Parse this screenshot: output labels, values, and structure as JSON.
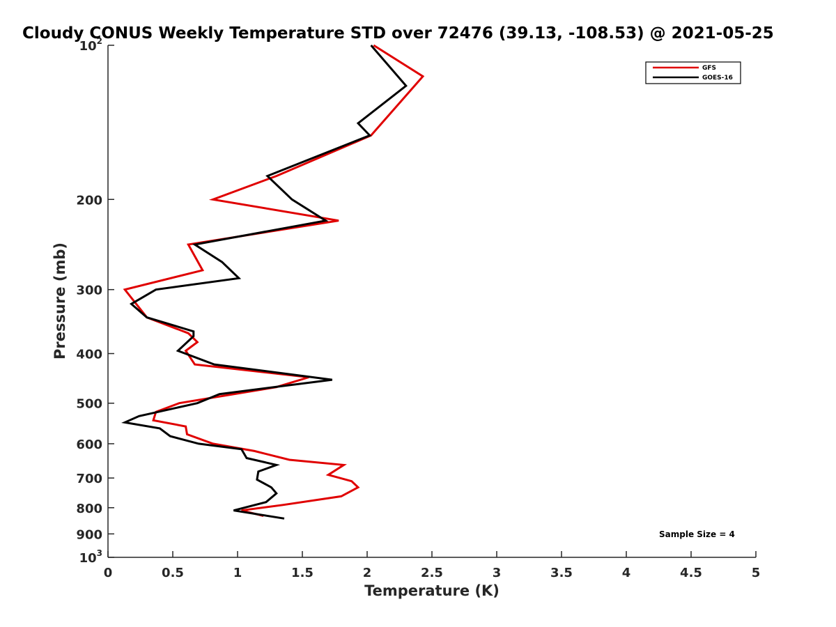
{
  "chart_data": {
    "type": "line",
    "title": "Cloudy CONUS Weekly Temperature STD over 72476 (39.13, -108.53) @ 2021-05-25",
    "xlabel": "Temperature (K)",
    "ylabel": "Pressure (mb)",
    "xlim": [
      0,
      5
    ],
    "ylim": [
      100,
      1000
    ],
    "y_scale": "log",
    "y_reversed": true,
    "grid": false,
    "legend_position": "top-right",
    "x_ticks": [
      {
        "value": 0,
        "label": "0"
      },
      {
        "value": 0.5,
        "label": "0.5"
      },
      {
        "value": 1,
        "label": "1"
      },
      {
        "value": 1.5,
        "label": "1.5"
      },
      {
        "value": 2,
        "label": "2"
      },
      {
        "value": 2.5,
        "label": "2.5"
      },
      {
        "value": 3,
        "label": "3"
      },
      {
        "value": 3.5,
        "label": "3.5"
      },
      {
        "value": 4,
        "label": "4"
      },
      {
        "value": 4.5,
        "label": "4.5"
      },
      {
        "value": 5,
        "label": "5"
      }
    ],
    "y_ticks": [
      {
        "value": 100,
        "base": "10",
        "exp": "2"
      },
      {
        "value": 200,
        "label": "200"
      },
      {
        "value": 300,
        "label": "300"
      },
      {
        "value": 400,
        "label": "400"
      },
      {
        "value": 500,
        "label": "500"
      },
      {
        "value": 600,
        "label": "600"
      },
      {
        "value": 700,
        "label": "700"
      },
      {
        "value": 800,
        "label": "800"
      },
      {
        "value": 900,
        "label": "900"
      },
      {
        "value": 1000,
        "base": "10",
        "exp": "3"
      }
    ],
    "series": [
      {
        "name": "GFS",
        "color": "#e00000",
        "points": [
          [
            2.05,
            100
          ],
          [
            2.43,
            115
          ],
          [
            2.03,
            150
          ],
          [
            1.3,
            180
          ],
          [
            0.81,
            200
          ],
          [
            1.78,
            220
          ],
          [
            0.62,
            245
          ],
          [
            0.73,
            275
          ],
          [
            0.13,
            300
          ],
          [
            0.3,
            340
          ],
          [
            0.62,
            365
          ],
          [
            0.69,
            380
          ],
          [
            0.6,
            395
          ],
          [
            0.67,
            420
          ],
          [
            1.55,
            445
          ],
          [
            1.3,
            465
          ],
          [
            0.55,
            500
          ],
          [
            0.37,
            520
          ],
          [
            0.35,
            540
          ],
          [
            0.6,
            555
          ],
          [
            0.61,
            575
          ],
          [
            0.81,
            600
          ],
          [
            1.13,
            620
          ],
          [
            1.4,
            645
          ],
          [
            1.82,
            660
          ],
          [
            1.7,
            690
          ],
          [
            1.88,
            710
          ],
          [
            1.93,
            730
          ],
          [
            1.8,
            760
          ],
          [
            1.35,
            790
          ],
          [
            1.03,
            810
          ],
          [
            1.2,
            830
          ]
        ]
      },
      {
        "name": "GOES-16",
        "color": "#000000",
        "points": [
          [
            2.03,
            100
          ],
          [
            2.3,
            120
          ],
          [
            1.93,
            142
          ],
          [
            2.02,
            150
          ],
          [
            1.23,
            180
          ],
          [
            1.42,
            200
          ],
          [
            1.68,
            220
          ],
          [
            0.67,
            245
          ],
          [
            0.88,
            265
          ],
          [
            1.01,
            285
          ],
          [
            0.37,
            300
          ],
          [
            0.18,
            320
          ],
          [
            0.3,
            340
          ],
          [
            0.66,
            362
          ],
          [
            0.66,
            370
          ],
          [
            0.54,
            395
          ],
          [
            0.82,
            420
          ],
          [
            1.73,
            450
          ],
          [
            0.86,
            480
          ],
          [
            0.69,
            500
          ],
          [
            0.24,
            530
          ],
          [
            0.13,
            545
          ],
          [
            0.4,
            560
          ],
          [
            0.48,
            580
          ],
          [
            0.7,
            600
          ],
          [
            1.03,
            615
          ],
          [
            1.07,
            640
          ],
          [
            1.3,
            660
          ],
          [
            1.16,
            680
          ],
          [
            1.15,
            705
          ],
          [
            1.26,
            730
          ],
          [
            1.3,
            750
          ],
          [
            1.22,
            780
          ],
          [
            0.97,
            810
          ],
          [
            1.36,
            840
          ]
        ]
      }
    ],
    "annotation": "Sample Size = 4"
  }
}
